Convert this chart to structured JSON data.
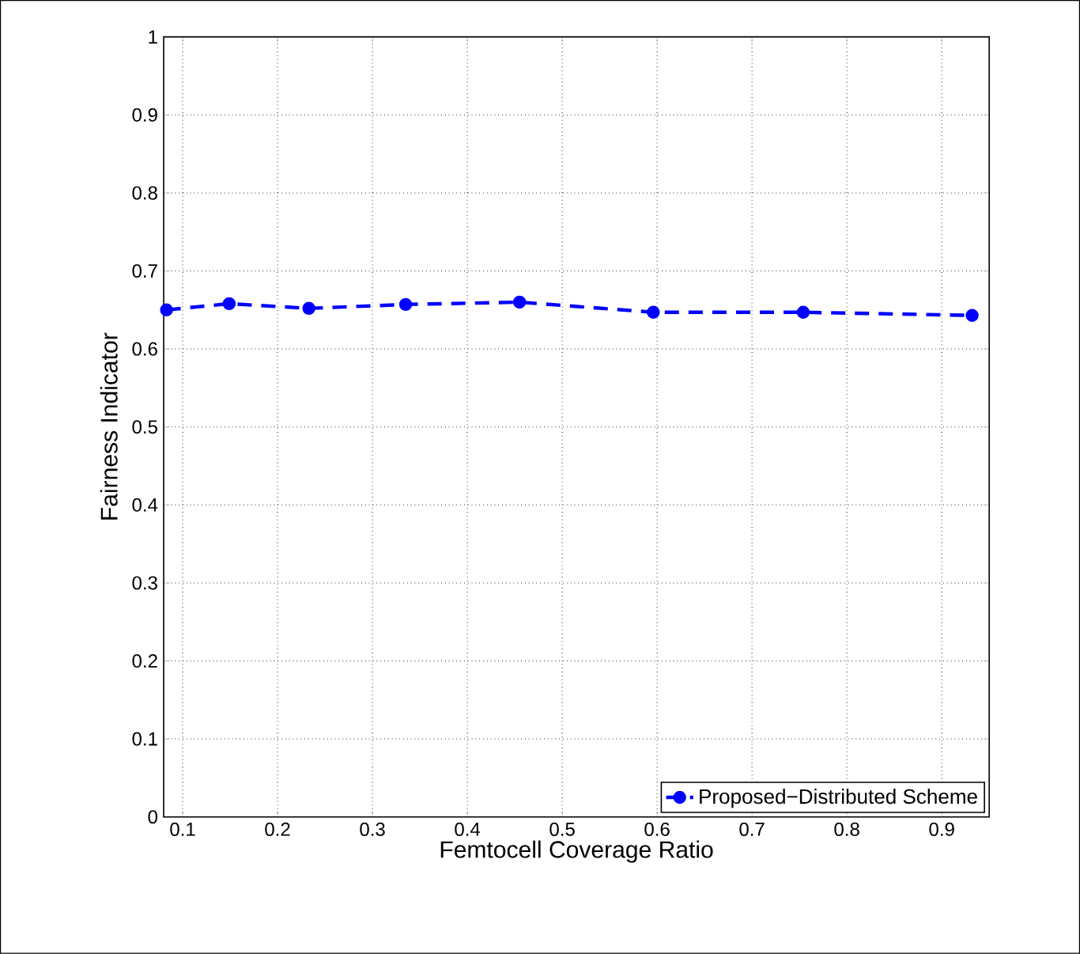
{
  "chart_data": {
    "type": "line",
    "xlabel": "Femtocell Coverage Ratio",
    "ylabel": "Fairness Indicator",
    "x": [
      0.083,
      0.149,
      0.233,
      0.335,
      0.455,
      0.596,
      0.754,
      0.932
    ],
    "series": [
      {
        "name": "Proposed−Distributed Scheme",
        "color": "#0000ff",
        "values": [
          0.65,
          0.658,
          0.652,
          0.657,
          0.66,
          0.647,
          0.647,
          0.643
        ]
      }
    ],
    "xlim": [
      0.08,
      0.95
    ],
    "ylim": [
      0,
      1
    ],
    "xticks": [
      0.1,
      0.2,
      0.3,
      0.4,
      0.5,
      0.6,
      0.7,
      0.8,
      0.9
    ],
    "yticks": [
      0,
      0.1,
      0.2,
      0.3,
      0.4,
      0.5,
      0.6,
      0.7,
      0.8,
      0.9,
      1
    ],
    "grid": true,
    "legend": "bottom right",
    "marker": "circle",
    "line_style": "dashed"
  }
}
